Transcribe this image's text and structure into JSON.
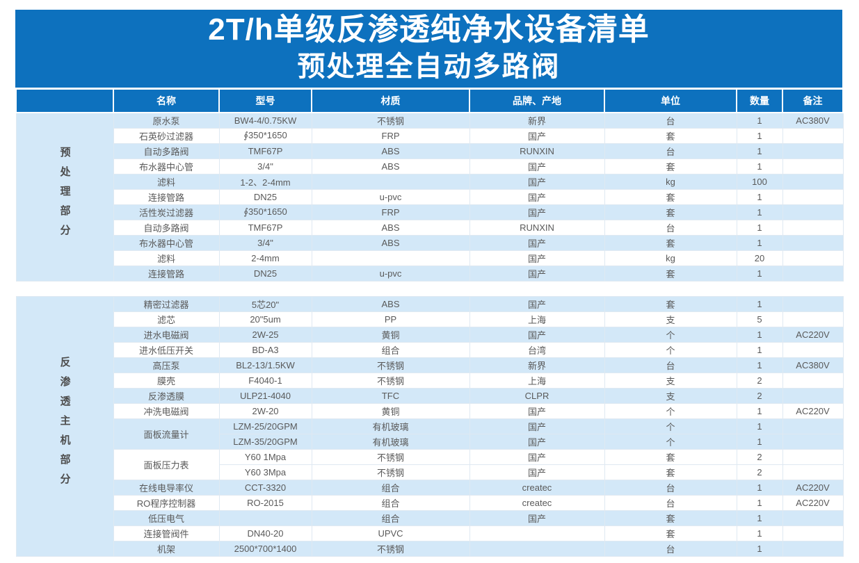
{
  "title": "2T/h单级反渗透纯净水设备清单",
  "subtitle": "预处理全自动多路阀",
  "columns": {
    "name": "名称",
    "model": "型号",
    "material": "材质",
    "brand": "品牌、产地",
    "unit": "单位",
    "qty": "数量",
    "note": "备注"
  },
  "colors": {
    "header_blue": "#0d71be",
    "stripe_blue": "#d3e8f8",
    "text_gray": "#595959"
  },
  "sections": [
    {
      "label": "预处理部分",
      "rows": [
        {
          "name": "原水泵",
          "model": "BW4-4/0.75KW",
          "material": "不锈钢",
          "brand": "新界",
          "unit": "台",
          "qty": "1",
          "note": "AC380V"
        },
        {
          "name": "石英砂过滤器",
          "model": "∮350*1650",
          "material": "FRP",
          "brand": "国产",
          "unit": "套",
          "qty": "1",
          "note": ""
        },
        {
          "name": "自动多路阀",
          "model": "TMF67P",
          "material": "ABS",
          "brand": "RUNXIN",
          "unit": "台",
          "qty": "1",
          "note": ""
        },
        {
          "name": "布水器中心管",
          "model": "3/4\"",
          "material": "ABS",
          "brand": "国产",
          "unit": "套",
          "qty": "1",
          "note": ""
        },
        {
          "name": "滤料",
          "model": "1-2、2-4mm",
          "material": "",
          "brand": "国产",
          "unit": "kg",
          "qty": "100",
          "note": ""
        },
        {
          "name": "连接管路",
          "model": "DN25",
          "material": "u-pvc",
          "brand": "国产",
          "unit": "套",
          "qty": "1",
          "note": ""
        },
        {
          "name": "活性炭过滤器",
          "model": "∮350*1650",
          "material": "FRP",
          "brand": "国产",
          "unit": "套",
          "qty": "1",
          "note": ""
        },
        {
          "name": "自动多路阀",
          "model": "TMF67P",
          "material": "ABS",
          "brand": "RUNXIN",
          "unit": "台",
          "qty": "1",
          "note": ""
        },
        {
          "name": "布水器中心管",
          "model": "3/4\"",
          "material": "ABS",
          "brand": "国产",
          "unit": "套",
          "qty": "1",
          "note": ""
        },
        {
          "name": "滤料",
          "model": "2-4mm",
          "material": "",
          "brand": "国产",
          "unit": "kg",
          "qty": "20",
          "note": ""
        },
        {
          "name": "连接管路",
          "model": "DN25",
          "material": "u-pvc",
          "brand": "国产",
          "unit": "套",
          "qty": "1",
          "note": ""
        }
      ]
    },
    {
      "label": "反渗透主机部分",
      "rows": [
        {
          "name": "精密过滤器",
          "model": "5芯20\"",
          "material": "ABS",
          "brand": "国产",
          "unit": "套",
          "qty": "1",
          "note": ""
        },
        {
          "name": "滤芯",
          "model": "20\"5um",
          "material": "PP",
          "brand": "上海",
          "unit": "支",
          "qty": "5",
          "note": ""
        },
        {
          "name": "进水电磁阀",
          "model": "2W-25",
          "material": "黄铜",
          "brand": "国产",
          "unit": "个",
          "qty": "1",
          "note": "AC220V"
        },
        {
          "name": "进水低压开关",
          "model": "BD-A3",
          "material": "组合",
          "brand": "台湾",
          "unit": "个",
          "qty": "1",
          "note": ""
        },
        {
          "name": "高压泵",
          "model": "BL2-13/1.5KW",
          "material": "不锈钢",
          "brand": "新界",
          "unit": "台",
          "qty": "1",
          "note": "AC380V"
        },
        {
          "name": "膜壳",
          "model": "F4040-1",
          "material": "不锈钢",
          "brand": "上海",
          "unit": "支",
          "qty": "2",
          "note": ""
        },
        {
          "name": "反渗透膜",
          "model": "ULP21-4040",
          "material": "TFC",
          "brand": "CLPR",
          "unit": "支",
          "qty": "2",
          "note": ""
        },
        {
          "name": "冲洗电磁阀",
          "model": "2W-20",
          "material": "黄铜",
          "brand": "国产",
          "unit": "个",
          "qty": "1",
          "note": "AC220V"
        },
        {
          "name": "面板流量计",
          "model": "LZM-25/20GPM",
          "material": "有机玻璃",
          "brand": "国产",
          "unit": "个",
          "qty": "1",
          "note": ""
        },
        {
          "model": "LZM-35/20GPM",
          "material": "有机玻璃",
          "brand": "国产",
          "unit": "个",
          "qty": "1",
          "note": ""
        },
        {
          "name": "面板压力表",
          "model": "Y60 1Mpa",
          "material": "不锈钢",
          "brand": "国产",
          "unit": "套",
          "qty": "2",
          "note": ""
        },
        {
          "model": "Y60 3Mpa",
          "material": "不锈钢",
          "brand": "国产",
          "unit": "套",
          "qty": "2",
          "note": ""
        },
        {
          "name": "在线电导率仪",
          "model": "CCT-3320",
          "material": "组合",
          "brand": "createc",
          "unit": "台",
          "qty": "1",
          "note": "AC220V"
        },
        {
          "name": "RO程序控制器",
          "model": "RO-2015",
          "material": "组合",
          "brand": "createc",
          "unit": "台",
          "qty": "1",
          "note": "AC220V"
        },
        {
          "name": "低压电气",
          "model": "",
          "material": "组合",
          "brand": "国产",
          "unit": "套",
          "qty": "1",
          "note": ""
        },
        {
          "name": "连接管阀件",
          "model": "DN40-20",
          "material": "UPVC",
          "brand": "",
          "unit": "套",
          "qty": "1",
          "note": ""
        },
        {
          "name": "机架",
          "model": "2500*700*1400",
          "material": "不锈钢",
          "brand": "",
          "unit": "台",
          "qty": "1",
          "note": ""
        }
      ]
    }
  ]
}
